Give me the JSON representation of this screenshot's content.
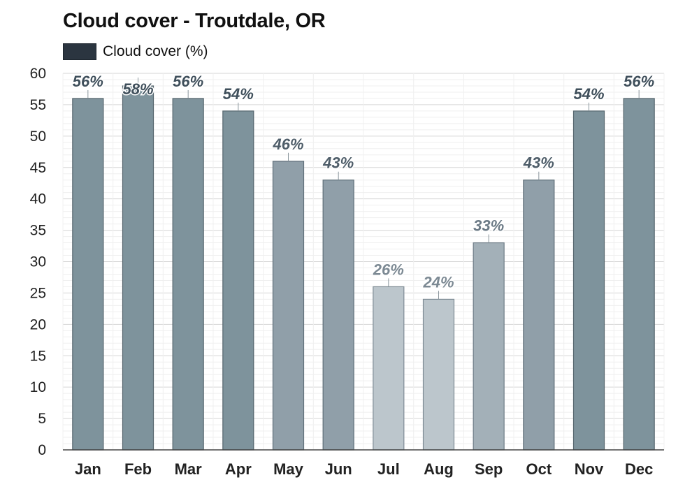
{
  "chart_data": {
    "type": "bar",
    "title": "Cloud cover - Troutdale, OR",
    "legend": [
      {
        "name": "Cloud cover (%)",
        "color": "#2b3540"
      }
    ],
    "categories": [
      "Jan",
      "Feb",
      "Mar",
      "Apr",
      "May",
      "Jun",
      "Jul",
      "Aug",
      "Sep",
      "Oct",
      "Nov",
      "Dec"
    ],
    "series": [
      {
        "name": "Cloud cover (%)",
        "values": [
          56,
          58,
          56,
          54,
          46,
          43,
          26,
          24,
          33,
          43,
          54,
          56
        ],
        "labels": [
          "56%",
          "58%",
          "56%",
          "54%",
          "46%",
          "43%",
          "26%",
          "24%",
          "33%",
          "43%",
          "54%",
          "56%"
        ]
      }
    ],
    "ylim": [
      0,
      60
    ],
    "yticks": [
      "0",
      "5",
      "10",
      "15",
      "20",
      "25",
      "30",
      "35",
      "40",
      "45",
      "50",
      "55",
      "60"
    ],
    "grid": true,
    "legend_position": "top-left"
  }
}
